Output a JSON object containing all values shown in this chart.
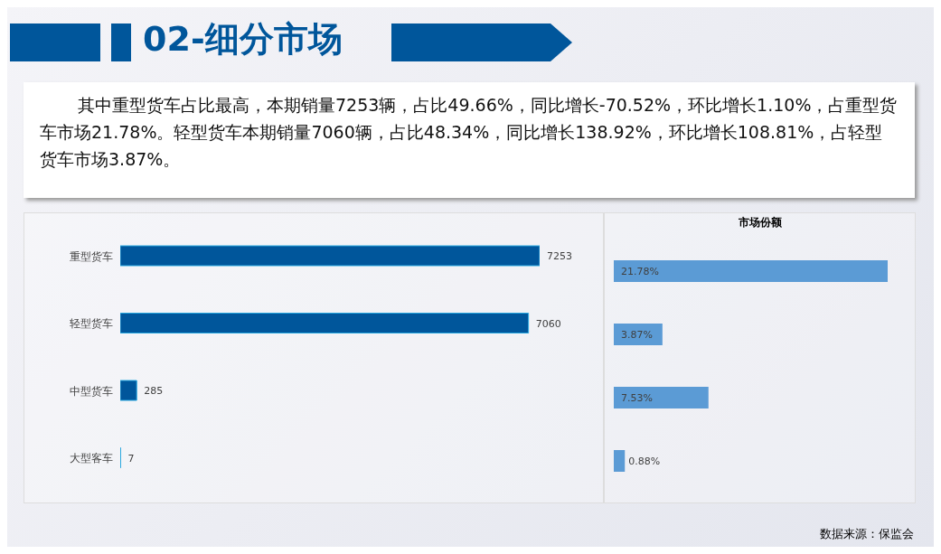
{
  "chart_data": [
    {
      "type": "bar",
      "orientation": "horizontal",
      "title": "02-细分市场",
      "subtitle": "其中重型货车占比最高，本期销量7253辆，占比49.66%，同比增长-70.52%，环比增长1.10%，占重型货车市场21.78%。轻型货车本期销量7060辆，占比48.34%，同比增长138.92%，环比增长108.81%，占轻型货车市场3.87%。",
      "categories": [
        "重型货车",
        "轻型货车",
        "中型货车",
        "大型客车"
      ],
      "values": [
        7253,
        7060,
        285,
        7
      ],
      "color": "#00569b",
      "data_labels": true
    },
    {
      "type": "bar",
      "orientation": "horizontal",
      "title": "市场份额",
      "categories": [
        null,
        null,
        null,
        null
      ],
      "values": [
        21.78,
        3.87,
        7.53,
        0.88
      ],
      "value_labels": [
        "21.78%",
        "3.87%",
        "7.53%",
        "0.88%"
      ],
      "color": "#5b9bd5",
      "tick_labels": false,
      "annotations": [
        "数据来源：保监会"
      ]
    }
  ]
}
